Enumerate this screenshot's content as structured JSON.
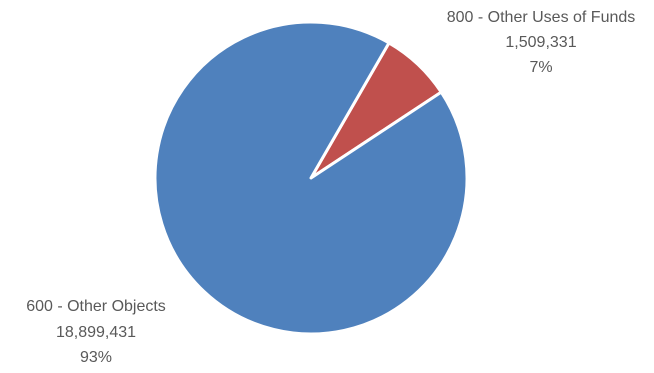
{
  "chart_data": {
    "type": "pie",
    "title": "",
    "legend": "none",
    "slices": [
      {
        "name": "800 - Other Uses of Funds",
        "value": 1509331,
        "value_label": "1,509,331",
        "percent_label": "7%",
        "color": "#C0504D"
      },
      {
        "name": "600 - Other Objects",
        "value": 18899431,
        "value_label": "18,899,431",
        "percent_label": "93%",
        "color": "#4F81BD"
      }
    ],
    "border_color": "#FFFFFF"
  }
}
